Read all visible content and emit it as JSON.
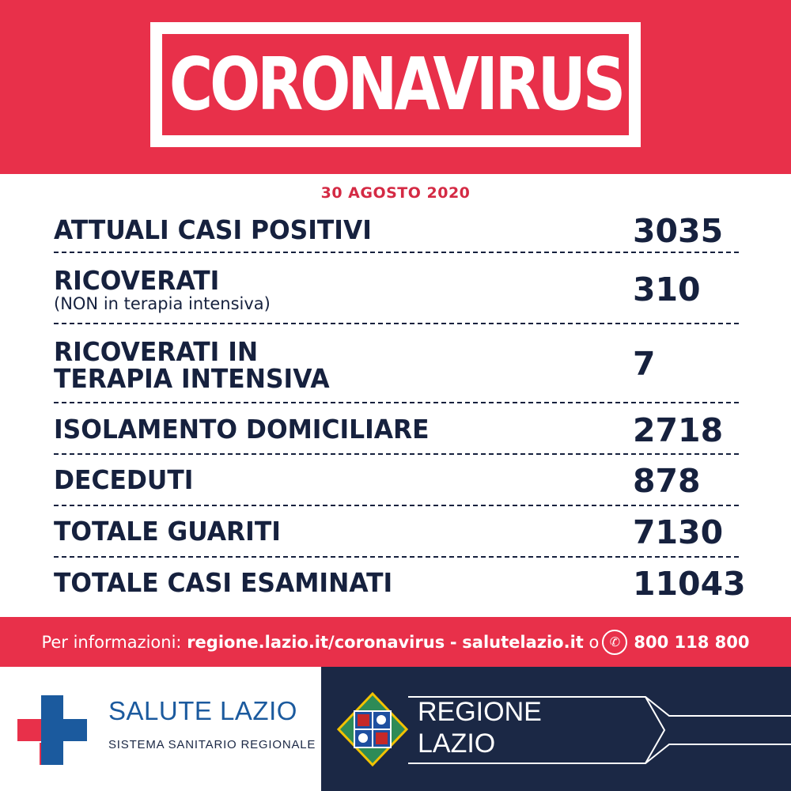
{
  "header": {
    "title": "CORONAVIRUS"
  },
  "date": "30 AGOSTO 2020",
  "stats": [
    {
      "label": "ATTUALI CASI POSITIVI",
      "value": "3035"
    },
    {
      "label": "RICOVERATI",
      "sublabel": "(NON in terapia intensiva)",
      "value": "310"
    },
    {
      "label_line1": "RICOVERATI IN",
      "label_line2": "TERAPIA INTENSIVA",
      "value": "7"
    },
    {
      "label": "ISOLAMENTO DOMICILIARE",
      "value": "2718"
    },
    {
      "label": "DECEDUTI",
      "value": "878"
    },
    {
      "label": "TOTALE GUARITI",
      "value": "7130"
    },
    {
      "label": "TOTALE CASI ESAMINATI",
      "value": "11043"
    }
  ],
  "info": {
    "prefix": "Per informazioni:",
    "link1": "regione.lazio.it/coronavirus",
    "separator": "-",
    "link2": "salutelazio.it",
    "conj": "o",
    "phone": "800 118 800",
    "phone_icon": "phone-icon"
  },
  "footer": {
    "salute_title": "SALUTE LAZIO",
    "salute_subtitle": "SISTEMA SANITARIO REGIONALE",
    "regione_line1": "REGIONE",
    "regione_line2": "LAZIO"
  },
  "colors": {
    "red": "#e8304a",
    "navy": "#1b2845",
    "text": "#16213e",
    "blue_cross": "#1b5a9e",
    "red_cross": "#e8304a"
  }
}
